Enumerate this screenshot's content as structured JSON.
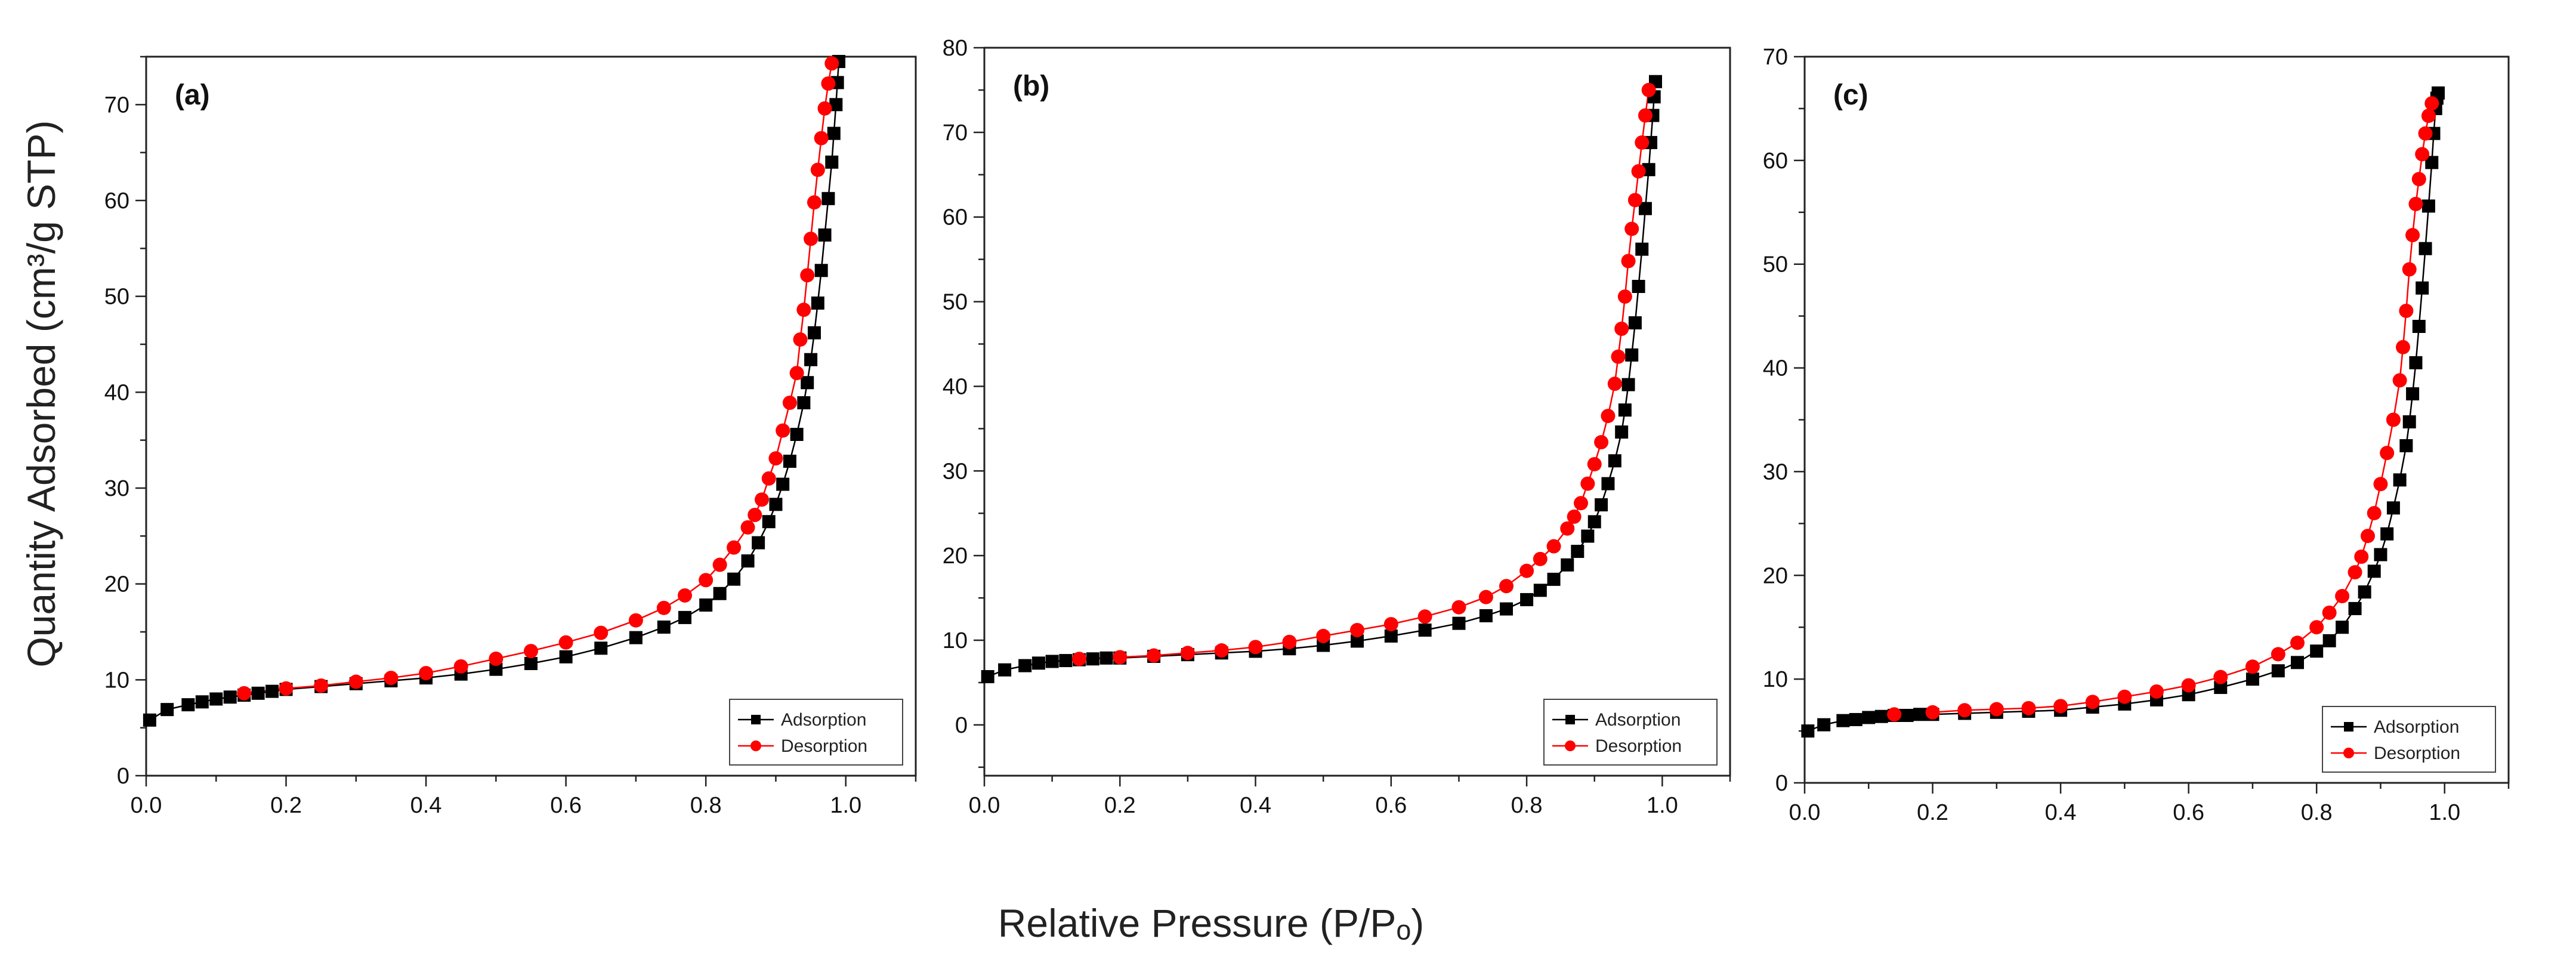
{
  "figure": {
    "ylabel": "Quantity Adsorbed (cm³/g STP)",
    "xlabel": "Relative Pressure (P/Pₒ)"
  },
  "colors": {
    "adsorption": "#000000",
    "desorption": "#ff0000",
    "axis": "#222222"
  },
  "chart_data": [
    {
      "type": "line",
      "panel": "(a)",
      "xlim": [
        0,
        1.1
      ],
      "ylim": [
        0,
        75
      ],
      "x_ticks": [
        0,
        0.2,
        0.4,
        0.6,
        0.8,
        1.0
      ],
      "y_ticks": [
        0,
        10,
        20,
        30,
        40,
        50,
        60,
        70
      ],
      "legend": "bottom-right",
      "grid": false,
      "series": [
        {
          "name": "Adsorption",
          "marker": "square",
          "x": [
            0.005,
            0.03,
            0.06,
            0.08,
            0.1,
            0.12,
            0.14,
            0.16,
            0.18,
            0.2,
            0.25,
            0.3,
            0.35,
            0.4,
            0.45,
            0.5,
            0.55,
            0.6,
            0.65,
            0.7,
            0.74,
            0.77,
            0.8,
            0.82,
            0.84,
            0.86,
            0.875,
            0.89,
            0.9,
            0.91,
            0.92,
            0.93,
            0.94,
            0.945,
            0.95,
            0.955,
            0.96,
            0.965,
            0.97,
            0.975,
            0.98,
            0.983,
            0.986,
            0.988,
            0.99
          ],
          "y": [
            5.8,
            6.9,
            7.4,
            7.7,
            8.0,
            8.2,
            8.4,
            8.6,
            8.8,
            9.0,
            9.3,
            9.6,
            9.9,
            10.2,
            10.6,
            11.1,
            11.7,
            12.4,
            13.3,
            14.4,
            15.5,
            16.5,
            17.8,
            19.0,
            20.5,
            22.4,
            24.3,
            26.5,
            28.3,
            30.4,
            32.8,
            35.6,
            38.9,
            41.0,
            43.4,
            46.2,
            49.3,
            52.7,
            56.4,
            60.2,
            64.0,
            67.0,
            70.0,
            72.3,
            74.5
          ]
        },
        {
          "name": "Desorption",
          "marker": "circle",
          "x": [
            0.14,
            0.2,
            0.25,
            0.3,
            0.35,
            0.4,
            0.45,
            0.5,
            0.55,
            0.6,
            0.65,
            0.7,
            0.74,
            0.77,
            0.8,
            0.82,
            0.84,
            0.86,
            0.87,
            0.88,
            0.89,
            0.9,
            0.91,
            0.92,
            0.93,
            0.935,
            0.94,
            0.945,
            0.95,
            0.955,
            0.96,
            0.965,
            0.97,
            0.975,
            0.98
          ],
          "y": [
            8.6,
            9.1,
            9.4,
            9.8,
            10.2,
            10.7,
            11.4,
            12.2,
            13.0,
            13.9,
            14.9,
            16.2,
            17.5,
            18.8,
            20.4,
            22.0,
            23.8,
            25.9,
            27.2,
            28.8,
            31.0,
            33.1,
            36.0,
            38.9,
            42.0,
            45.5,
            48.6,
            52.2,
            56.0,
            59.8,
            63.2,
            66.5,
            69.6,
            72.2,
            74.3
          ]
        }
      ]
    },
    {
      "type": "line",
      "panel": "(b)",
      "xlim": [
        0,
        1.1
      ],
      "ylim": [
        -6,
        80
      ],
      "x_ticks": [
        0,
        0.2,
        0.4,
        0.6,
        0.8,
        1.0
      ],
      "y_ticks": [
        0,
        10,
        20,
        30,
        40,
        50,
        60,
        70,
        80
      ],
      "legend": "bottom-right",
      "grid": false,
      "series": [
        {
          "name": "Adsorption",
          "marker": "square",
          "x": [
            0.005,
            0.03,
            0.06,
            0.08,
            0.1,
            0.12,
            0.14,
            0.16,
            0.18,
            0.2,
            0.25,
            0.3,
            0.35,
            0.4,
            0.45,
            0.5,
            0.55,
            0.6,
            0.65,
            0.7,
            0.74,
            0.77,
            0.8,
            0.82,
            0.84,
            0.86,
            0.875,
            0.89,
            0.9,
            0.91,
            0.92,
            0.93,
            0.94,
            0.945,
            0.95,
            0.955,
            0.96,
            0.965,
            0.97,
            0.975,
            0.98,
            0.983,
            0.986,
            0.988,
            0.99
          ],
          "y": [
            5.7,
            6.5,
            7.0,
            7.3,
            7.5,
            7.6,
            7.7,
            7.8,
            7.9,
            7.9,
            8.1,
            8.3,
            8.5,
            8.7,
            9.0,
            9.4,
            9.9,
            10.5,
            11.2,
            12.0,
            12.9,
            13.7,
            14.8,
            15.9,
            17.2,
            18.9,
            20.5,
            22.3,
            24.0,
            26.0,
            28.5,
            31.2,
            34.6,
            37.2,
            40.2,
            43.7,
            47.5,
            51.8,
            56.2,
            61.0,
            65.6,
            68.8,
            72.0,
            74.2,
            76.0
          ]
        },
        {
          "name": "Desorption",
          "marker": "circle",
          "x": [
            0.14,
            0.2,
            0.25,
            0.3,
            0.35,
            0.4,
            0.45,
            0.5,
            0.55,
            0.6,
            0.65,
            0.7,
            0.74,
            0.77,
            0.8,
            0.82,
            0.84,
            0.86,
            0.87,
            0.88,
            0.89,
            0.9,
            0.91,
            0.92,
            0.93,
            0.935,
            0.94,
            0.945,
            0.95,
            0.955,
            0.96,
            0.965,
            0.97,
            0.975,
            0.98
          ],
          "y": [
            7.8,
            8.0,
            8.2,
            8.5,
            8.8,
            9.2,
            9.8,
            10.5,
            11.2,
            11.9,
            12.8,
            13.9,
            15.1,
            16.4,
            18.2,
            19.6,
            21.1,
            23.2,
            24.6,
            26.2,
            28.5,
            30.8,
            33.4,
            36.5,
            40.3,
            43.5,
            46.8,
            50.6,
            54.8,
            58.6,
            62.0,
            65.4,
            68.8,
            72.0,
            75.0
          ]
        }
      ]
    },
    {
      "type": "line",
      "panel": "(c)",
      "xlim": [
        0,
        1.1
      ],
      "ylim": [
        0,
        70
      ],
      "x_ticks": [
        0,
        0.2,
        0.4,
        0.6,
        0.8,
        1.0
      ],
      "y_ticks": [
        0,
        10,
        20,
        30,
        40,
        50,
        60,
        70
      ],
      "legend": "bottom-right",
      "grid": false,
      "series": [
        {
          "name": "Adsorption",
          "marker": "square",
          "x": [
            0.005,
            0.03,
            0.06,
            0.08,
            0.1,
            0.12,
            0.14,
            0.16,
            0.18,
            0.2,
            0.25,
            0.3,
            0.35,
            0.4,
            0.45,
            0.5,
            0.55,
            0.6,
            0.65,
            0.7,
            0.74,
            0.77,
            0.8,
            0.82,
            0.84,
            0.86,
            0.875,
            0.89,
            0.9,
            0.91,
            0.92,
            0.93,
            0.94,
            0.945,
            0.95,
            0.955,
            0.96,
            0.965,
            0.97,
            0.975,
            0.98,
            0.983,
            0.986,
            0.988,
            0.99
          ],
          "y": [
            5.0,
            5.6,
            6.0,
            6.1,
            6.3,
            6.4,
            6.5,
            6.5,
            6.6,
            6.6,
            6.7,
            6.8,
            6.9,
            7.0,
            7.3,
            7.6,
            8.0,
            8.5,
            9.2,
            10.0,
            10.8,
            11.6,
            12.7,
            13.7,
            15.0,
            16.8,
            18.4,
            20.4,
            22.0,
            24.0,
            26.5,
            29.2,
            32.5,
            34.8,
            37.5,
            40.5,
            44.0,
            47.7,
            51.5,
            55.6,
            59.8,
            62.6,
            65.0,
            66.0,
            66.5
          ]
        },
        {
          "name": "Desorption",
          "marker": "circle",
          "x": [
            0.14,
            0.2,
            0.25,
            0.3,
            0.35,
            0.4,
            0.45,
            0.5,
            0.55,
            0.6,
            0.65,
            0.7,
            0.74,
            0.77,
            0.8,
            0.82,
            0.84,
            0.86,
            0.87,
            0.88,
            0.89,
            0.9,
            0.91,
            0.92,
            0.93,
            0.935,
            0.94,
            0.945,
            0.95,
            0.955,
            0.96,
            0.965,
            0.97,
            0.975,
            0.98
          ],
          "y": [
            6.6,
            6.8,
            7.0,
            7.1,
            7.2,
            7.4,
            7.8,
            8.3,
            8.8,
            9.4,
            10.2,
            11.2,
            12.4,
            13.5,
            15.0,
            16.4,
            18.0,
            20.3,
            21.8,
            23.8,
            26.0,
            28.8,
            31.8,
            35.0,
            38.8,
            42.0,
            45.5,
            49.5,
            52.8,
            55.8,
            58.2,
            60.6,
            62.6,
            64.3,
            65.5
          ]
        }
      ]
    }
  ]
}
